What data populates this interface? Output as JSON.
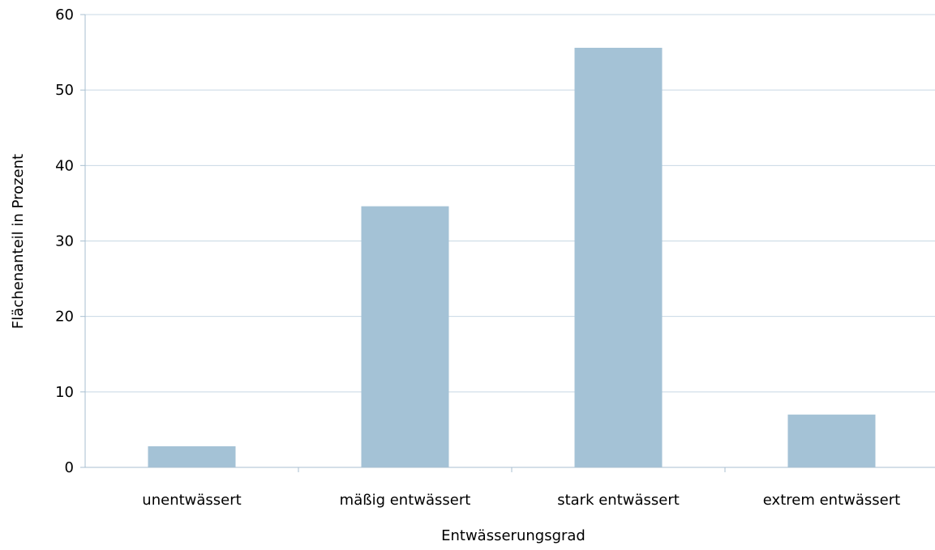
{
  "chart_data": {
    "type": "bar",
    "title": "",
    "xlabel": "Entwässerungsgrad",
    "ylabel": "Flächenanteil in Prozent",
    "categories": [
      "unentwässert",
      "mäßig entwässert",
      "stark entwässert",
      "extrem entwässert"
    ],
    "values": [
      2.8,
      34.6,
      55.6,
      7.0
    ],
    "ylim": [
      0,
      60
    ],
    "yticks": [
      "0",
      "10",
      "20",
      "30",
      "40",
      "50",
      "60"
    ],
    "grid": true,
    "legend": "none",
    "colors": {
      "bar": "#a4c2d6",
      "gridline": "#c8d8e4",
      "axis": "#a8bfd0"
    }
  }
}
